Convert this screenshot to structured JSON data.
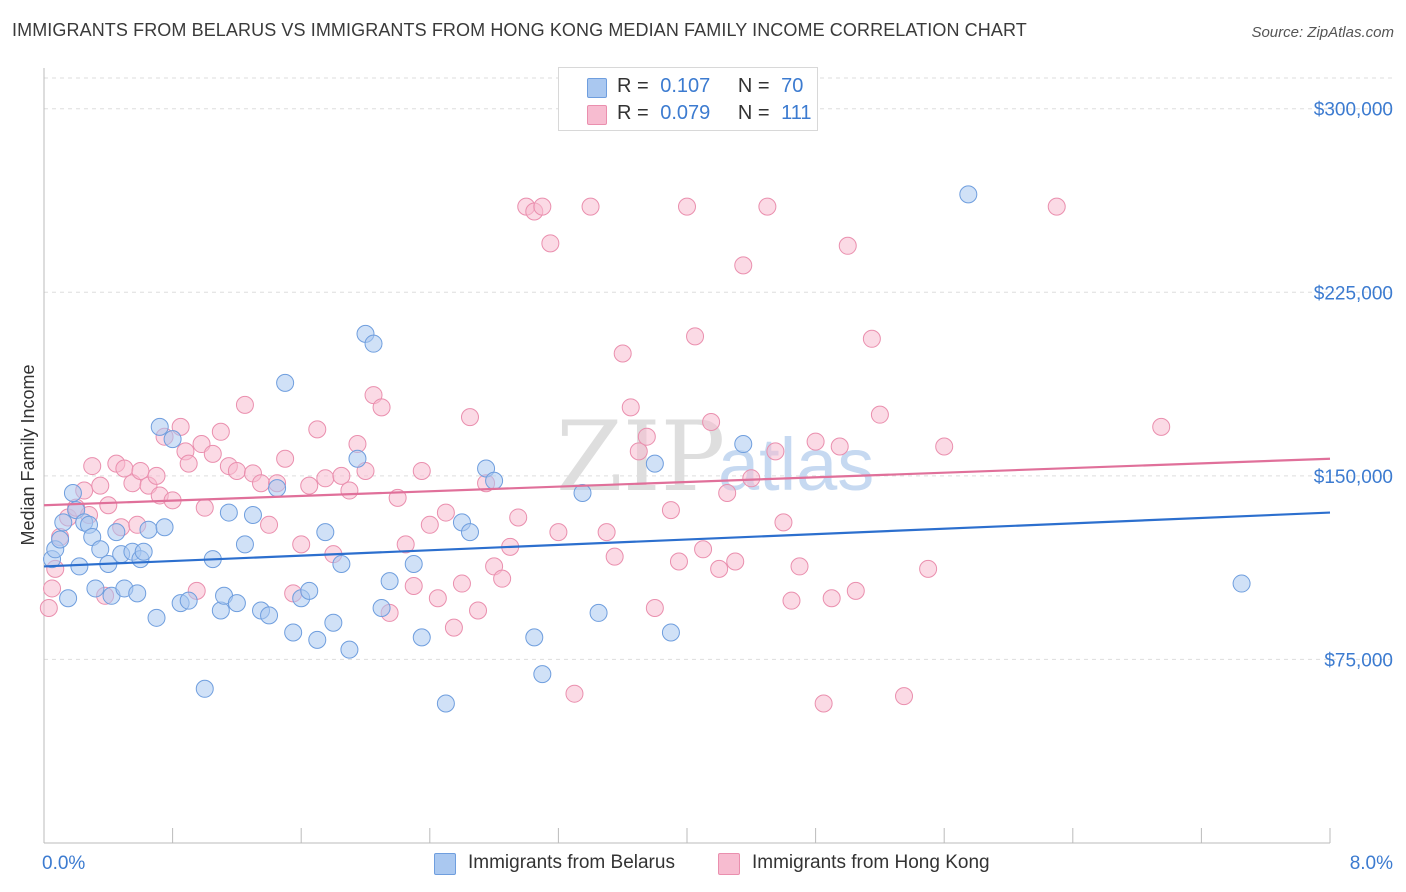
{
  "title": "IMMIGRANTS FROM BELARUS VS IMMIGRANTS FROM HONG KONG MEDIAN FAMILY INCOME CORRELATION CHART",
  "source": "Source: ZipAtlas.com",
  "watermark": {
    "zip": "ZIP",
    "atlas": "atlas"
  },
  "legend": {
    "r_label": "R =",
    "n_label": "N =",
    "rows": [
      {
        "r": "0.107",
        "n": "70"
      },
      {
        "r": "0.079",
        "n": "111"
      }
    ]
  },
  "colors": {
    "blue_fill": "#aac8f0",
    "blue_stroke": "#6f9ede",
    "blue_line": "#2c6fce",
    "pink_fill": "#f7bcd0",
    "pink_stroke": "#ea8fae",
    "pink_line": "#e0709a",
    "tick_text": "#3c7bd0",
    "grid": "#dddddd"
  },
  "chart_data": {
    "type": "scatter",
    "title": "IMMIGRANTS FROM BELARUS VS IMMIGRANTS FROM HONG KONG MEDIAN FAMILY INCOME CORRELATION CHART",
    "xlabel": "",
    "ylabel": "Median Family Income",
    "xlim": [
      0,
      8
    ],
    "ylim": [
      0,
      315000
    ],
    "x_tick_labels": [
      "0.0%",
      "8.0%"
    ],
    "y_ticks": [
      75000,
      150000,
      225000,
      300000
    ],
    "y_tick_labels": [
      "$75,000",
      "$150,000",
      "$225,000",
      "$300,000"
    ],
    "grid": true,
    "legend_position": "top-center",
    "series": [
      {
        "name": "Immigrants from Belarus",
        "color": "#aac8f0",
        "trend": {
          "x": [
            0.0,
            8.0
          ],
          "y": [
            113000,
            135000
          ]
        },
        "points": [
          [
            0.05,
            116000
          ],
          [
            0.07,
            120000
          ],
          [
            0.1,
            124000
          ],
          [
            0.12,
            131000
          ],
          [
            0.15,
            100000
          ],
          [
            0.18,
            143000
          ],
          [
            0.2,
            136000
          ],
          [
            0.22,
            113000
          ],
          [
            0.25,
            131000
          ],
          [
            0.28,
            130000
          ],
          [
            0.3,
            125000
          ],
          [
            0.32,
            104000
          ],
          [
            0.35,
            120000
          ],
          [
            0.4,
            114000
          ],
          [
            0.42,
            101000
          ],
          [
            0.45,
            127000
          ],
          [
            0.48,
            118000
          ],
          [
            0.5,
            104000
          ],
          [
            0.55,
            119000
          ],
          [
            0.58,
            102000
          ],
          [
            0.6,
            116000
          ],
          [
            0.62,
            119000
          ],
          [
            0.65,
            128000
          ],
          [
            0.7,
            92000
          ],
          [
            0.72,
            170000
          ],
          [
            0.75,
            129000
          ],
          [
            0.8,
            165000
          ],
          [
            0.85,
            98000
          ],
          [
            0.9,
            99000
          ],
          [
            1.0,
            63000
          ],
          [
            1.05,
            116000
          ],
          [
            1.1,
            95000
          ],
          [
            1.12,
            101000
          ],
          [
            1.15,
            135000
          ],
          [
            1.2,
            98000
          ],
          [
            1.25,
            122000
          ],
          [
            1.3,
            134000
          ],
          [
            1.35,
            95000
          ],
          [
            1.4,
            93000
          ],
          [
            1.45,
            145000
          ],
          [
            1.5,
            188000
          ],
          [
            1.55,
            86000
          ],
          [
            1.6,
            100000
          ],
          [
            1.65,
            103000
          ],
          [
            1.7,
            83000
          ],
          [
            1.75,
            127000
          ],
          [
            1.8,
            90000
          ],
          [
            1.85,
            114000
          ],
          [
            1.9,
            79000
          ],
          [
            1.95,
            157000
          ],
          [
            2.0,
            208000
          ],
          [
            2.05,
            204000
          ],
          [
            2.1,
            96000
          ],
          [
            2.15,
            107000
          ],
          [
            2.3,
            114000
          ],
          [
            2.35,
            84000
          ],
          [
            2.5,
            57000
          ],
          [
            2.6,
            131000
          ],
          [
            2.75,
            153000
          ],
          [
            2.8,
            148000
          ],
          [
            3.05,
            84000
          ],
          [
            3.1,
            69000
          ],
          [
            3.35,
            143000
          ],
          [
            3.45,
            94000
          ],
          [
            3.8,
            155000
          ],
          [
            3.9,
            86000
          ],
          [
            4.35,
            163000
          ],
          [
            5.75,
            265000
          ],
          [
            7.45,
            106000
          ],
          [
            2.65,
            127000
          ]
        ]
      },
      {
        "name": "Immigrants from Hong Kong",
        "color": "#f7bcd0",
        "trend": {
          "x": [
            0.0,
            8.0
          ],
          "y": [
            138000,
            157000
          ]
        },
        "points": [
          [
            0.03,
            96000
          ],
          [
            0.05,
            104000
          ],
          [
            0.07,
            112000
          ],
          [
            0.1,
            125000
          ],
          [
            0.15,
            133000
          ],
          [
            0.2,
            137000
          ],
          [
            0.25,
            144000
          ],
          [
            0.28,
            134000
          ],
          [
            0.3,
            154000
          ],
          [
            0.35,
            146000
          ],
          [
            0.38,
            101000
          ],
          [
            0.4,
            138000
          ],
          [
            0.45,
            155000
          ],
          [
            0.48,
            129000
          ],
          [
            0.5,
            153000
          ],
          [
            0.55,
            147000
          ],
          [
            0.58,
            130000
          ],
          [
            0.6,
            152000
          ],
          [
            0.65,
            146000
          ],
          [
            0.7,
            150000
          ],
          [
            0.72,
            142000
          ],
          [
            0.75,
            166000
          ],
          [
            0.8,
            140000
          ],
          [
            0.85,
            170000
          ],
          [
            0.88,
            160000
          ],
          [
            0.9,
            155000
          ],
          [
            0.95,
            103000
          ],
          [
            0.98,
            163000
          ],
          [
            1.0,
            137000
          ],
          [
            1.05,
            159000
          ],
          [
            1.1,
            168000
          ],
          [
            1.15,
            154000
          ],
          [
            1.2,
            152000
          ],
          [
            1.25,
            179000
          ],
          [
            1.3,
            151000
          ],
          [
            1.35,
            147000
          ],
          [
            1.4,
            130000
          ],
          [
            1.45,
            147000
          ],
          [
            1.5,
            157000
          ],
          [
            1.55,
            102000
          ],
          [
            1.6,
            122000
          ],
          [
            1.65,
            146000
          ],
          [
            1.7,
            169000
          ],
          [
            1.75,
            149000
          ],
          [
            1.8,
            118000
          ],
          [
            1.85,
            150000
          ],
          [
            1.9,
            144000
          ],
          [
            1.95,
            163000
          ],
          [
            2.0,
            152000
          ],
          [
            2.05,
            183000
          ],
          [
            2.1,
            178000
          ],
          [
            2.15,
            94000
          ],
          [
            2.2,
            141000
          ],
          [
            2.25,
            122000
          ],
          [
            2.3,
            105000
          ],
          [
            2.35,
            152000
          ],
          [
            2.4,
            130000
          ],
          [
            2.45,
            100000
          ],
          [
            2.5,
            135000
          ],
          [
            2.55,
            88000
          ],
          [
            2.6,
            106000
          ],
          [
            2.65,
            174000
          ],
          [
            2.7,
            95000
          ],
          [
            2.75,
            147000
          ],
          [
            2.8,
            113000
          ],
          [
            2.85,
            108000
          ],
          [
            2.9,
            121000
          ],
          [
            2.95,
            133000
          ],
          [
            3.0,
            260000
          ],
          [
            3.05,
            258000
          ],
          [
            3.1,
            260000
          ],
          [
            3.15,
            245000
          ],
          [
            3.2,
            127000
          ],
          [
            3.3,
            61000
          ],
          [
            3.4,
            260000
          ],
          [
            3.5,
            127000
          ],
          [
            3.55,
            117000
          ],
          [
            3.6,
            200000
          ],
          [
            3.65,
            178000
          ],
          [
            3.7,
            160000
          ],
          [
            3.75,
            166000
          ],
          [
            3.8,
            96000
          ],
          [
            3.9,
            136000
          ],
          [
            4.0,
            260000
          ],
          [
            4.05,
            207000
          ],
          [
            4.1,
            120000
          ],
          [
            4.15,
            172000
          ],
          [
            4.2,
            112000
          ],
          [
            4.3,
            115000
          ],
          [
            4.35,
            236000
          ],
          [
            4.4,
            149000
          ],
          [
            4.5,
            260000
          ],
          [
            4.55,
            160000
          ],
          [
            4.6,
            131000
          ],
          [
            4.65,
            99000
          ],
          [
            4.7,
            113000
          ],
          [
            4.8,
            164000
          ],
          [
            4.85,
            57000
          ],
          [
            4.9,
            100000
          ],
          [
            4.95,
            162000
          ],
          [
            5.0,
            244000
          ],
          [
            5.05,
            103000
          ],
          [
            5.15,
            206000
          ],
          [
            5.2,
            175000
          ],
          [
            5.35,
            60000
          ],
          [
            5.5,
            112000
          ],
          [
            5.6,
            162000
          ],
          [
            6.3,
            260000
          ],
          [
            6.95,
            170000
          ],
          [
            4.25,
            143000
          ],
          [
            3.95,
            115000
          ]
        ]
      }
    ]
  },
  "bottom_legend": [
    "Immigrants from Belarus",
    "Immigrants from Hong Kong"
  ]
}
